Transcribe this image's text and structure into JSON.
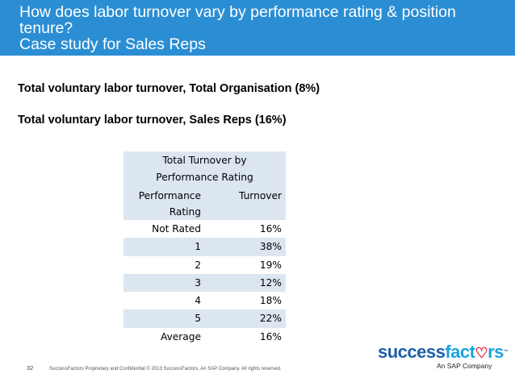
{
  "title": {
    "line1": "How does labor turnover vary by performance rating & position",
    "line2": "tenure?",
    "line3": "Case study for Sales Reps"
  },
  "stats": {
    "org_label": "Total voluntary labor turnover, Total Organisation",
    "org_value": "(8%)",
    "sales_label": "Total voluntary labor turnover, Sales Reps",
    "sales_value": "(16%)"
  },
  "table": {
    "heading_line1": "Total Turnover by",
    "heading_line2": "Performance Rating",
    "col1_line1": "Performance",
    "col1_line2": "Rating",
    "col2": "Turnover",
    "rows": [
      {
        "rating": "Not Rated",
        "turnover": "16%"
      },
      {
        "rating": "1",
        "turnover": "38%"
      },
      {
        "rating": "2",
        "turnover": "19%"
      },
      {
        "rating": "3",
        "turnover": "12%"
      },
      {
        "rating": "4",
        "turnover": "18%"
      },
      {
        "rating": "5",
        "turnover": "22%"
      },
      {
        "rating": "Average",
        "turnover": "16%"
      }
    ]
  },
  "footer": {
    "page_number": "32",
    "text": "SuccessFactors Proprietary and Confidential    © 2013 SuccessFactors, An SAP Company.  All rights reserved."
  },
  "logo": {
    "part1": "success",
    "part2": "fact",
    "heart": "♡",
    "part3": "rs",
    "tm": "™",
    "sub": "An SAP Company"
  },
  "colors": {
    "title_bar": "#2b8ed4",
    "table_band": "#dce6f1",
    "logo_blue": "#1e5fa8",
    "logo_light": "#1aa3dd",
    "logo_heart": "#e2253a"
  }
}
